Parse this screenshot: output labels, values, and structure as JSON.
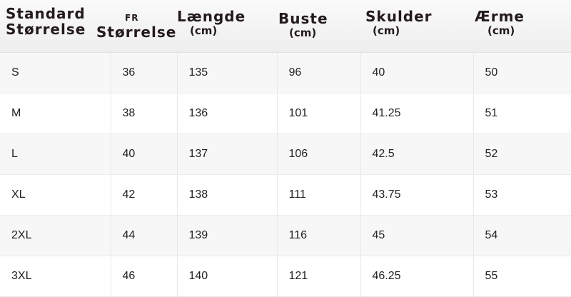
{
  "headers": [
    {
      "line1": "Standard",
      "line2": "Størrelse"
    },
    {
      "line1": "FR",
      "line2": "Størrelse"
    },
    {
      "line1": "Længde",
      "line2": "(cm)"
    },
    {
      "line1": "Buste",
      "line2": "(cm)"
    },
    {
      "line1": "Skulder",
      "line2": "(cm)"
    },
    {
      "line1": "Ærme",
      "line2": "(cm)"
    }
  ],
  "rows": [
    [
      "S",
      "36",
      "135",
      "96",
      "40",
      "50"
    ],
    [
      "M",
      "38",
      "136",
      "101",
      "41.25",
      "51"
    ],
    [
      "L",
      "40",
      "137",
      "106",
      "42.5",
      "52"
    ],
    [
      "XL",
      "42",
      "138",
      "111",
      "43.75",
      "53"
    ],
    [
      "2XL",
      "44",
      "139",
      "116",
      "45",
      "54"
    ],
    [
      "3XL",
      "46",
      "140",
      "121",
      "46.25",
      "55"
    ]
  ]
}
